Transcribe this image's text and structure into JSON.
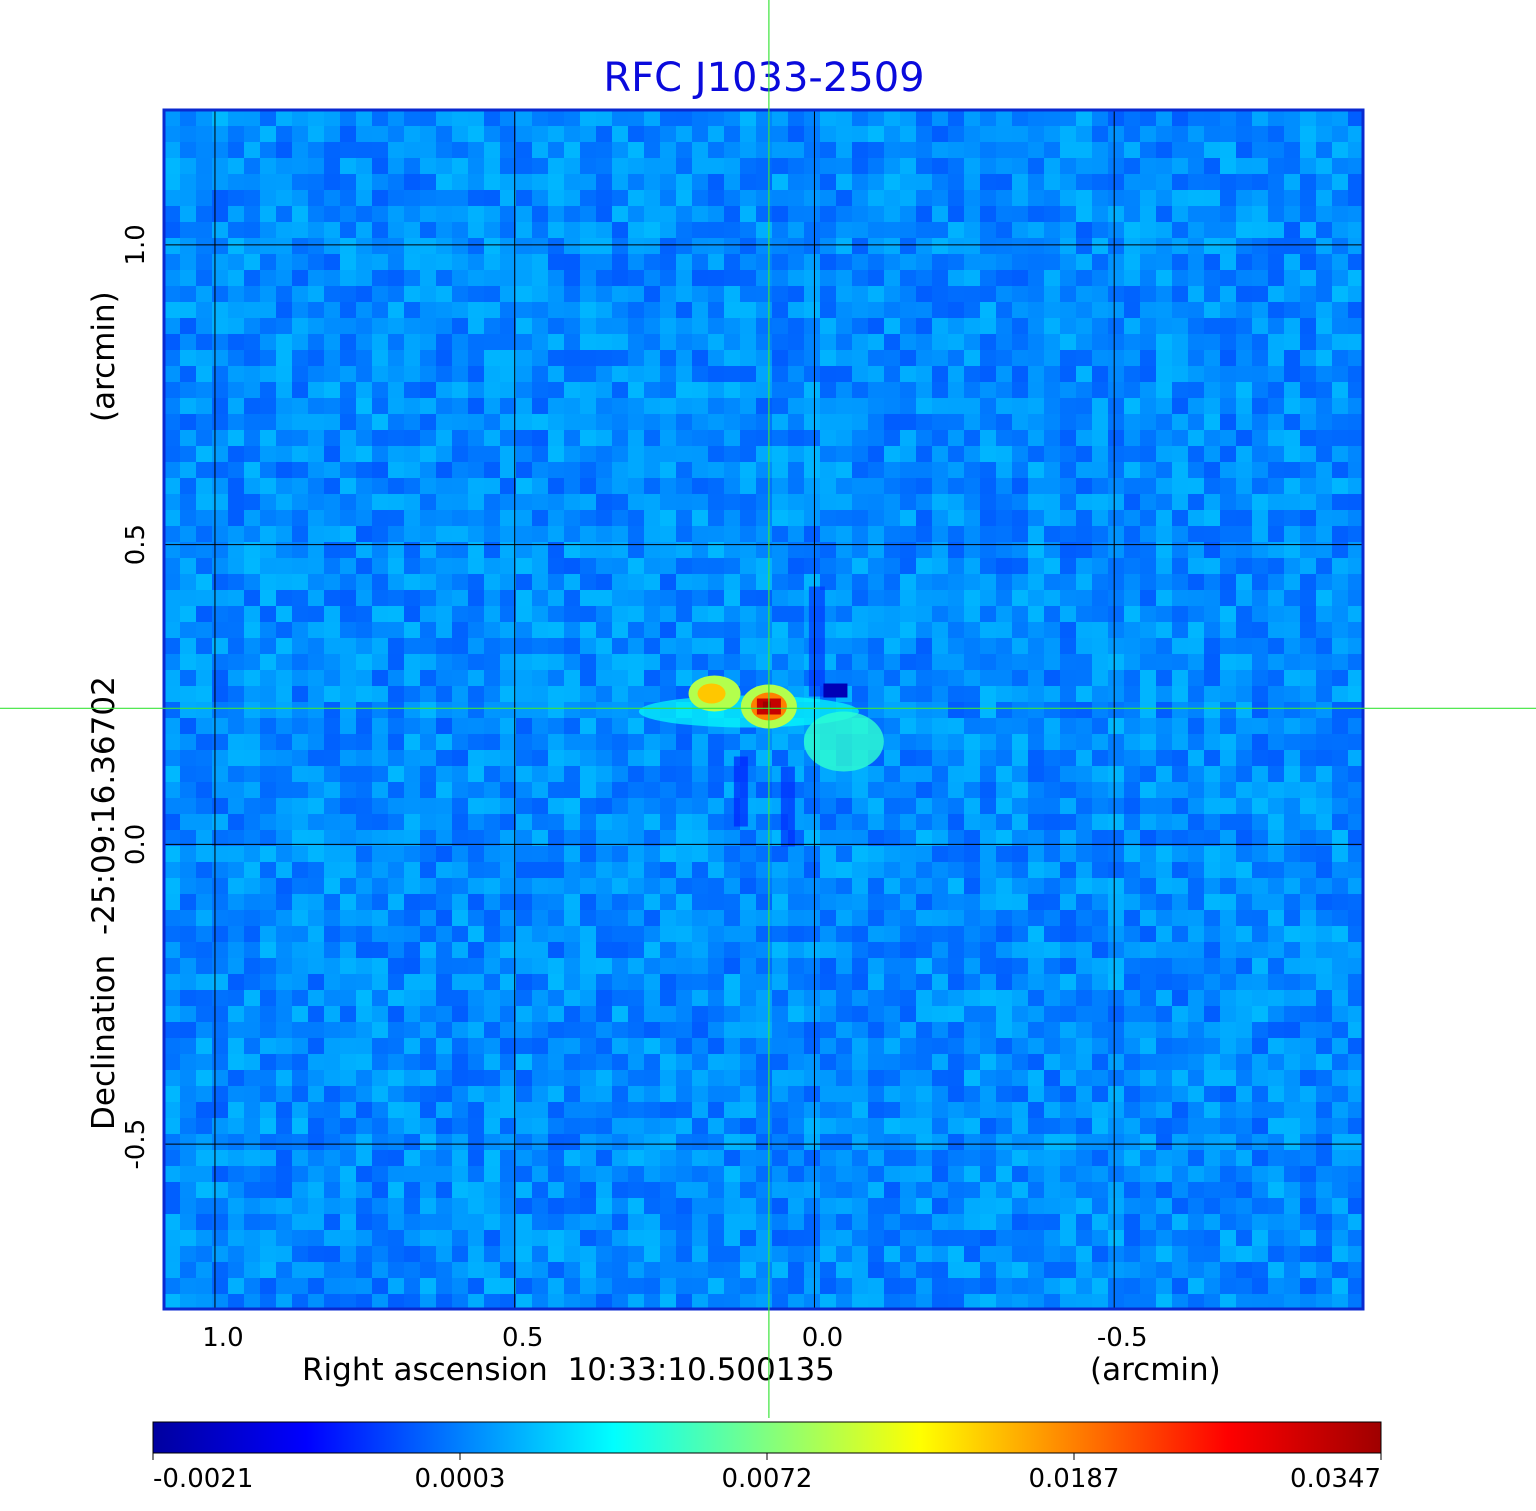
{
  "chart_data": {
    "type": "heatmap",
    "title": "RFC J1033-2509",
    "xlabel": "Right ascension  10:33:10.500135",
    "xunit": "(arcmin)",
    "ylabel": "Declination  -25:09:16.36702",
    "yunit": "(arcmin)",
    "x_ticks": [
      "1.0",
      "0.5",
      "0.0",
      "-0.5"
    ],
    "x_tick_values": [
      1.0,
      0.5,
      0.0,
      -0.5
    ],
    "y_ticks": [
      "1.0",
      "0.5",
      "0.0",
      "-0.5"
    ],
    "y_tick_values": [
      1.0,
      0.5,
      0.0,
      -0.5
    ],
    "xlim": [
      1.085,
      -0.915
    ],
    "ylim": [
      -0.775,
      1.225
    ],
    "grid": true,
    "crosshair": {
      "x": 0.076,
      "y": 0.227
    },
    "colorbar": {
      "ticks": [
        "-0.0021",
        "0.0003",
        "0.0072",
        "0.0187",
        "0.0347"
      ],
      "tick_values": [
        -0.0021,
        0.0003,
        0.0072,
        0.0187,
        0.0347
      ],
      "colors": [
        "#00009f",
        "#0000ff",
        "#0080ff",
        "#00ffff",
        "#80ff80",
        "#ffff00",
        "#ff8000",
        "#ff0000",
        "#9f0000"
      ]
    },
    "image_summary": {
      "background_level": 0.0,
      "peak_value": 0.0347,
      "peak_position": {
        "x": 0.076,
        "y": 0.23
      },
      "secondary_peak": {
        "x": 0.175,
        "y": 0.255,
        "value": 0.013
      },
      "minimum_position": {
        "x": -0.035,
        "y": 0.255,
        "value": -0.0021
      }
    }
  }
}
